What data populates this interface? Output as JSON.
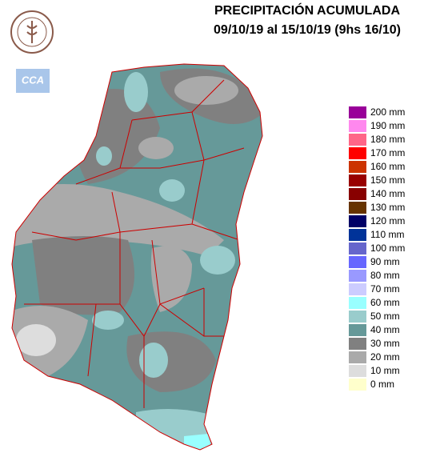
{
  "header": {
    "title": "PRECIPITACIÓN ACUMULADA",
    "subtitle": "09/10/19 al 15/10/19 (9hs 16/10)"
  },
  "logo": {
    "badge": "CCA"
  },
  "legend": {
    "items": [
      {
        "label": "200 mm",
        "color": "#990099"
      },
      {
        "label": "190 mm",
        "color": "#ff88ee"
      },
      {
        "label": "180 mm",
        "color": "#ff6688"
      },
      {
        "label": "170 mm",
        "color": "#ff0000"
      },
      {
        "label": "160 mm",
        "color": "#cc3300"
      },
      {
        "label": "150 mm",
        "color": "#990000"
      },
      {
        "label": "140 mm",
        "color": "#880000"
      },
      {
        "label": "130 mm",
        "color": "#663300"
      },
      {
        "label": "120 mm",
        "color": "#000066"
      },
      {
        "label": "110 mm",
        "color": "#003399"
      },
      {
        "label": "100 mm",
        "color": "#6666cc"
      },
      {
        "label": "90 mm",
        "color": "#6666ff"
      },
      {
        "label": "80 mm",
        "color": "#9999ff"
      },
      {
        "label": "70 mm",
        "color": "#ccccff"
      },
      {
        "label": "60 mm",
        "color": "#99ffff"
      },
      {
        "label": "50 mm",
        "color": "#99cccc"
      },
      {
        "label": "40 mm",
        "color": "#669999"
      },
      {
        "label": "30 mm",
        "color": "#808080"
      },
      {
        "label": "20 mm",
        "color": "#aaaaaa"
      },
      {
        "label": "10 mm",
        "color": "#dddddd"
      },
      {
        "label": "0 mm",
        "color": "#ffffcc"
      }
    ]
  }
}
